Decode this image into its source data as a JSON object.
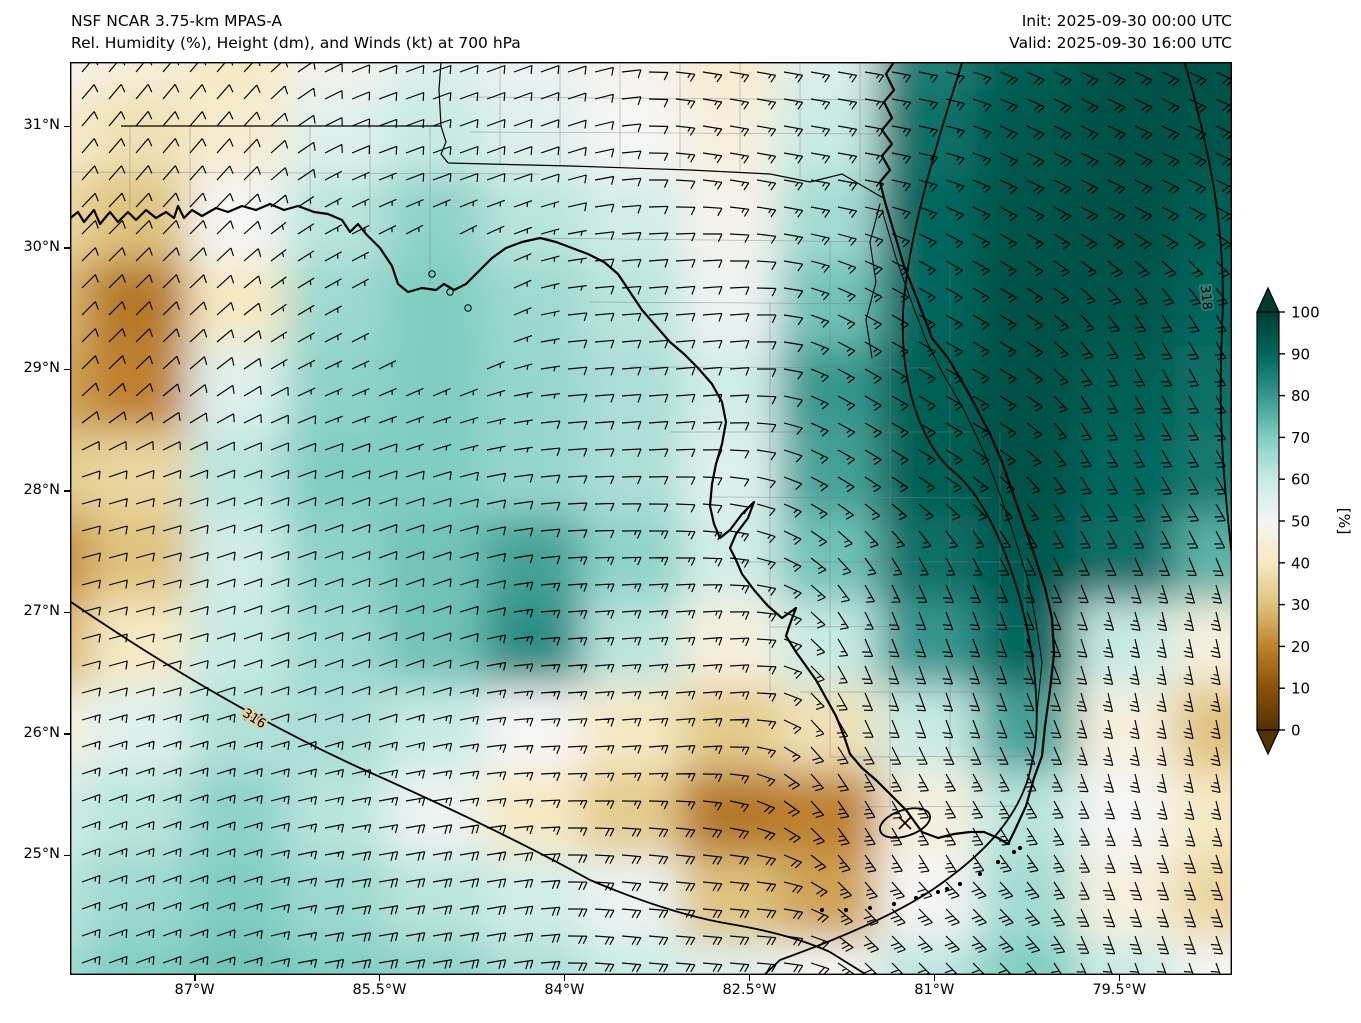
{
  "header": {
    "model_line": "NSF NCAR 3.75-km MPAS-A",
    "field_line": "Rel. Humidity (%), Height (dm), and Winds (kt) at 700 hPa",
    "init_label": "Init: 2025-09-30 00:00 UTC",
    "valid_label": "Valid: 2025-09-30 16:00 UTC"
  },
  "chart_data": {
    "type": "heatmap",
    "title": "NSF NCAR 3.75-km MPAS-A",
    "subtitle": "Rel. Humidity (%), Height (dm), and Winds (kt) at 700 hPa",
    "init_time": "2025-09-30 00:00 UTC",
    "valid_time": "2025-09-30 16:00 UTC",
    "level": "700 hPa",
    "map_extent": {
      "lon_min": -88.0,
      "lon_max": -78.6,
      "lat_min": 24.0,
      "lat_max": 31.5
    },
    "lat_ticks": [
      {
        "value": 31,
        "label": "31°N"
      },
      {
        "value": 30,
        "label": "30°N"
      },
      {
        "value": 29,
        "label": "29°N"
      },
      {
        "value": 28,
        "label": "28°N"
      },
      {
        "value": 27,
        "label": "27°N"
      },
      {
        "value": 26,
        "label": "26°N"
      },
      {
        "value": 25,
        "label": "25°N"
      }
    ],
    "lon_ticks": [
      {
        "value": -87,
        "label": "87°W"
      },
      {
        "value": -85.5,
        "label": "85.5°W"
      },
      {
        "value": -84,
        "label": "84°W"
      },
      {
        "value": -82.5,
        "label": "82.5°W"
      },
      {
        "value": -81,
        "label": "81°W"
      },
      {
        "value": -79.5,
        "label": "79.5°W"
      }
    ],
    "colorbar": {
      "label": "[%]",
      "ticks": [
        0,
        10,
        20,
        30,
        40,
        50,
        60,
        70,
        80,
        90,
        100
      ],
      "extend": "both",
      "cmap": "BrBG",
      "cmap_stops": [
        [
          0,
          "#543005"
        ],
        [
          0.1,
          "#8c510a"
        ],
        [
          0.2,
          "#bf812d"
        ],
        [
          0.3,
          "#dfc27d"
        ],
        [
          0.4,
          "#f6e8c3"
        ],
        [
          0.5,
          "#f5f5f5"
        ],
        [
          0.6,
          "#c7eae5"
        ],
        [
          0.7,
          "#80cdc1"
        ],
        [
          0.8,
          "#35978f"
        ],
        [
          0.9,
          "#01665e"
        ],
        [
          1,
          "#003c30"
        ]
      ]
    },
    "rh_grid": {
      "units": "%",
      "lons": [
        -88.2,
        -87.4,
        -86.6,
        -85.8,
        -85.0,
        -84.2,
        -83.4,
        -82.6,
        -81.8,
        -81.0,
        -80.2,
        -79.4,
        -78.6
      ],
      "lats": [
        31.6,
        30.9,
        30.2,
        29.5,
        28.8,
        28.1,
        27.4,
        26.7,
        26.0,
        25.3,
        24.6,
        23.9
      ],
      "values": [
        [
          50,
          45,
          40,
          48,
          55,
          52,
          48,
          42,
          55,
          85,
          92,
          95,
          95
        ],
        [
          42,
          38,
          42,
          55,
          60,
          55,
          50,
          45,
          60,
          88,
          93,
          95,
          94
        ],
        [
          35,
          30,
          50,
          62,
          68,
          62,
          58,
          48,
          65,
          90,
          94,
          95,
          92
        ],
        [
          28,
          18,
          40,
          66,
          70,
          66,
          62,
          52,
          72,
          90,
          95,
          94,
          90
        ],
        [
          25,
          20,
          55,
          68,
          70,
          67,
          64,
          58,
          80,
          92,
          95,
          92,
          88
        ],
        [
          32,
          35,
          62,
          70,
          70,
          67,
          64,
          55,
          78,
          92,
          95,
          90,
          86
        ],
        [
          22,
          30,
          58,
          68,
          72,
          78,
          68,
          58,
          72,
          88,
          93,
          88,
          75
        ],
        [
          28,
          40,
          60,
          66,
          72,
          82,
          62,
          45,
          60,
          80,
          90,
          60,
          45
        ],
        [
          45,
          55,
          63,
          64,
          60,
          50,
          40,
          32,
          38,
          60,
          78,
          45,
          30
        ],
        [
          58,
          62,
          68,
          62,
          52,
          40,
          32,
          18,
          20,
          45,
          62,
          50,
          40
        ],
        [
          62,
          66,
          70,
          66,
          62,
          58,
          52,
          30,
          25,
          50,
          65,
          45,
          35
        ],
        [
          65,
          70,
          72,
          70,
          68,
          64,
          60,
          55,
          50,
          62,
          70,
          60,
          50
        ]
      ]
    },
    "height_contours": [
      {
        "value": 316,
        "label": "316",
        "units": "dm",
        "where": "arc sweeping from west edge to south-central, and Atlantic branch wrapping the low"
      },
      {
        "value": 318,
        "label": "318",
        "units": "dm",
        "where": "near eastern map edge"
      },
      {
        "value": null,
        "label": "",
        "units": "dm",
        "where": "small closed low contour near Cape Sable / Florida Keys"
      }
    ],
    "wind_samples": [
      {
        "lon": -87.5,
        "lat": 31.2,
        "dir_from_deg": 40,
        "speed_kt": 10
      },
      {
        "lon": -84.8,
        "lat": 31.2,
        "dir_from_deg": 70,
        "speed_kt": 10
      },
      {
        "lon": -82.0,
        "lat": 31.2,
        "dir_from_deg": 100,
        "speed_kt": 15
      },
      {
        "lon": -79.2,
        "lat": 31.2,
        "dir_from_deg": 115,
        "speed_kt": 20
      },
      {
        "lon": -88.0,
        "lat": 29.6,
        "dir_from_deg": 45,
        "speed_kt": 12
      },
      {
        "lon": -85.0,
        "lat": 29.6,
        "dir_from_deg": 60,
        "speed_kt": 2
      },
      {
        "lon": -83.2,
        "lat": 29.2,
        "dir_from_deg": 85,
        "speed_kt": 10
      },
      {
        "lon": -81.0,
        "lat": 29.0,
        "dir_from_deg": 120,
        "speed_kt": 15
      },
      {
        "lon": -79.0,
        "lat": 28.6,
        "dir_from_deg": 150,
        "speed_kt": 20
      },
      {
        "lon": -88.0,
        "lat": 27.2,
        "dir_from_deg": 75,
        "speed_kt": 12
      },
      {
        "lon": -85.8,
        "lat": 27.0,
        "dir_from_deg": 70,
        "speed_kt": 12
      },
      {
        "lon": -83.2,
        "lat": 26.4,
        "dir_from_deg": 85,
        "speed_kt": 15
      },
      {
        "lon": -80.9,
        "lat": 26.4,
        "dir_from_deg": 160,
        "speed_kt": 18
      },
      {
        "lon": -78.9,
        "lat": 26.2,
        "dir_from_deg": 168,
        "speed_kt": 25
      },
      {
        "lon": -81.0,
        "lat": 25.3,
        "dir_from_deg": 150,
        "speed_kt": 25
      },
      {
        "lon": -87.6,
        "lat": 24.6,
        "dir_from_deg": 70,
        "speed_kt": 15
      },
      {
        "lon": -85.2,
        "lat": 24.4,
        "dir_from_deg": 80,
        "speed_kt": 18
      },
      {
        "lon": -82.8,
        "lat": 24.3,
        "dir_from_deg": 95,
        "speed_kt": 22
      },
      {
        "lon": -80.9,
        "lat": 24.5,
        "dir_from_deg": 135,
        "speed_kt": 30
      },
      {
        "lon": -79.1,
        "lat": 24.4,
        "dir_from_deg": 160,
        "speed_kt": 28
      }
    ]
  }
}
